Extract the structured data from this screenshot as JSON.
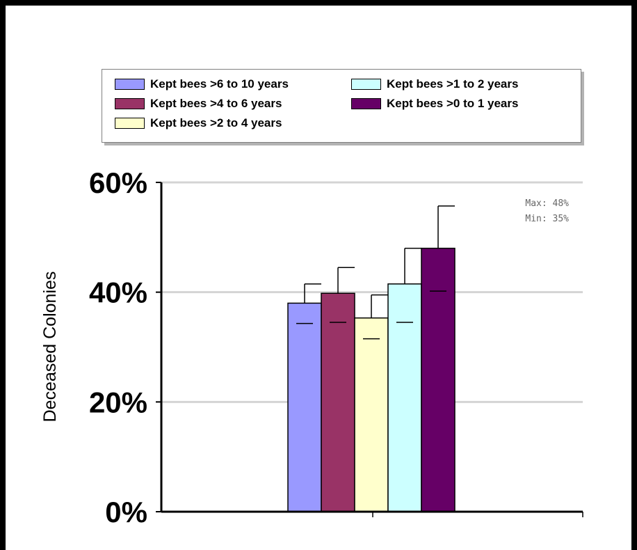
{
  "chart_data": {
    "type": "bar",
    "ylabel": "Deceased Colonies",
    "ylim": [
      0,
      60
    ],
    "yticks": [
      "0%",
      "20%",
      "40%",
      "60%"
    ],
    "grid": true,
    "legend_position": "top",
    "series": [
      {
        "name": "Kept bees >6 to 10 years",
        "value": 38,
        "error_high": 41.5,
        "error_low": 34.3,
        "color": "#9999ff"
      },
      {
        "name": "Kept bees >4 to 6 years",
        "value": 39.8,
        "error_high": 44.5,
        "error_low": 34.5,
        "color": "#993366"
      },
      {
        "name": "Kept bees >2 to 4 years",
        "value": 35.3,
        "error_high": 39.5,
        "error_low": 31.5,
        "color": "#ffffcc"
      },
      {
        "name": "Kept bees >1 to 2 years",
        "value": 41.5,
        "error_high": 48,
        "error_low": 34.5,
        "color": "#ccffff"
      },
      {
        "name": "Kept bees >0 to 1 years",
        "value": 48,
        "error_high": 55.7,
        "error_low": 40.2,
        "color": "#660066"
      }
    ],
    "legend_order": [
      0,
      3,
      1,
      4,
      2
    ],
    "annotations": [
      "Max: 48%",
      "Min: 35%"
    ]
  }
}
